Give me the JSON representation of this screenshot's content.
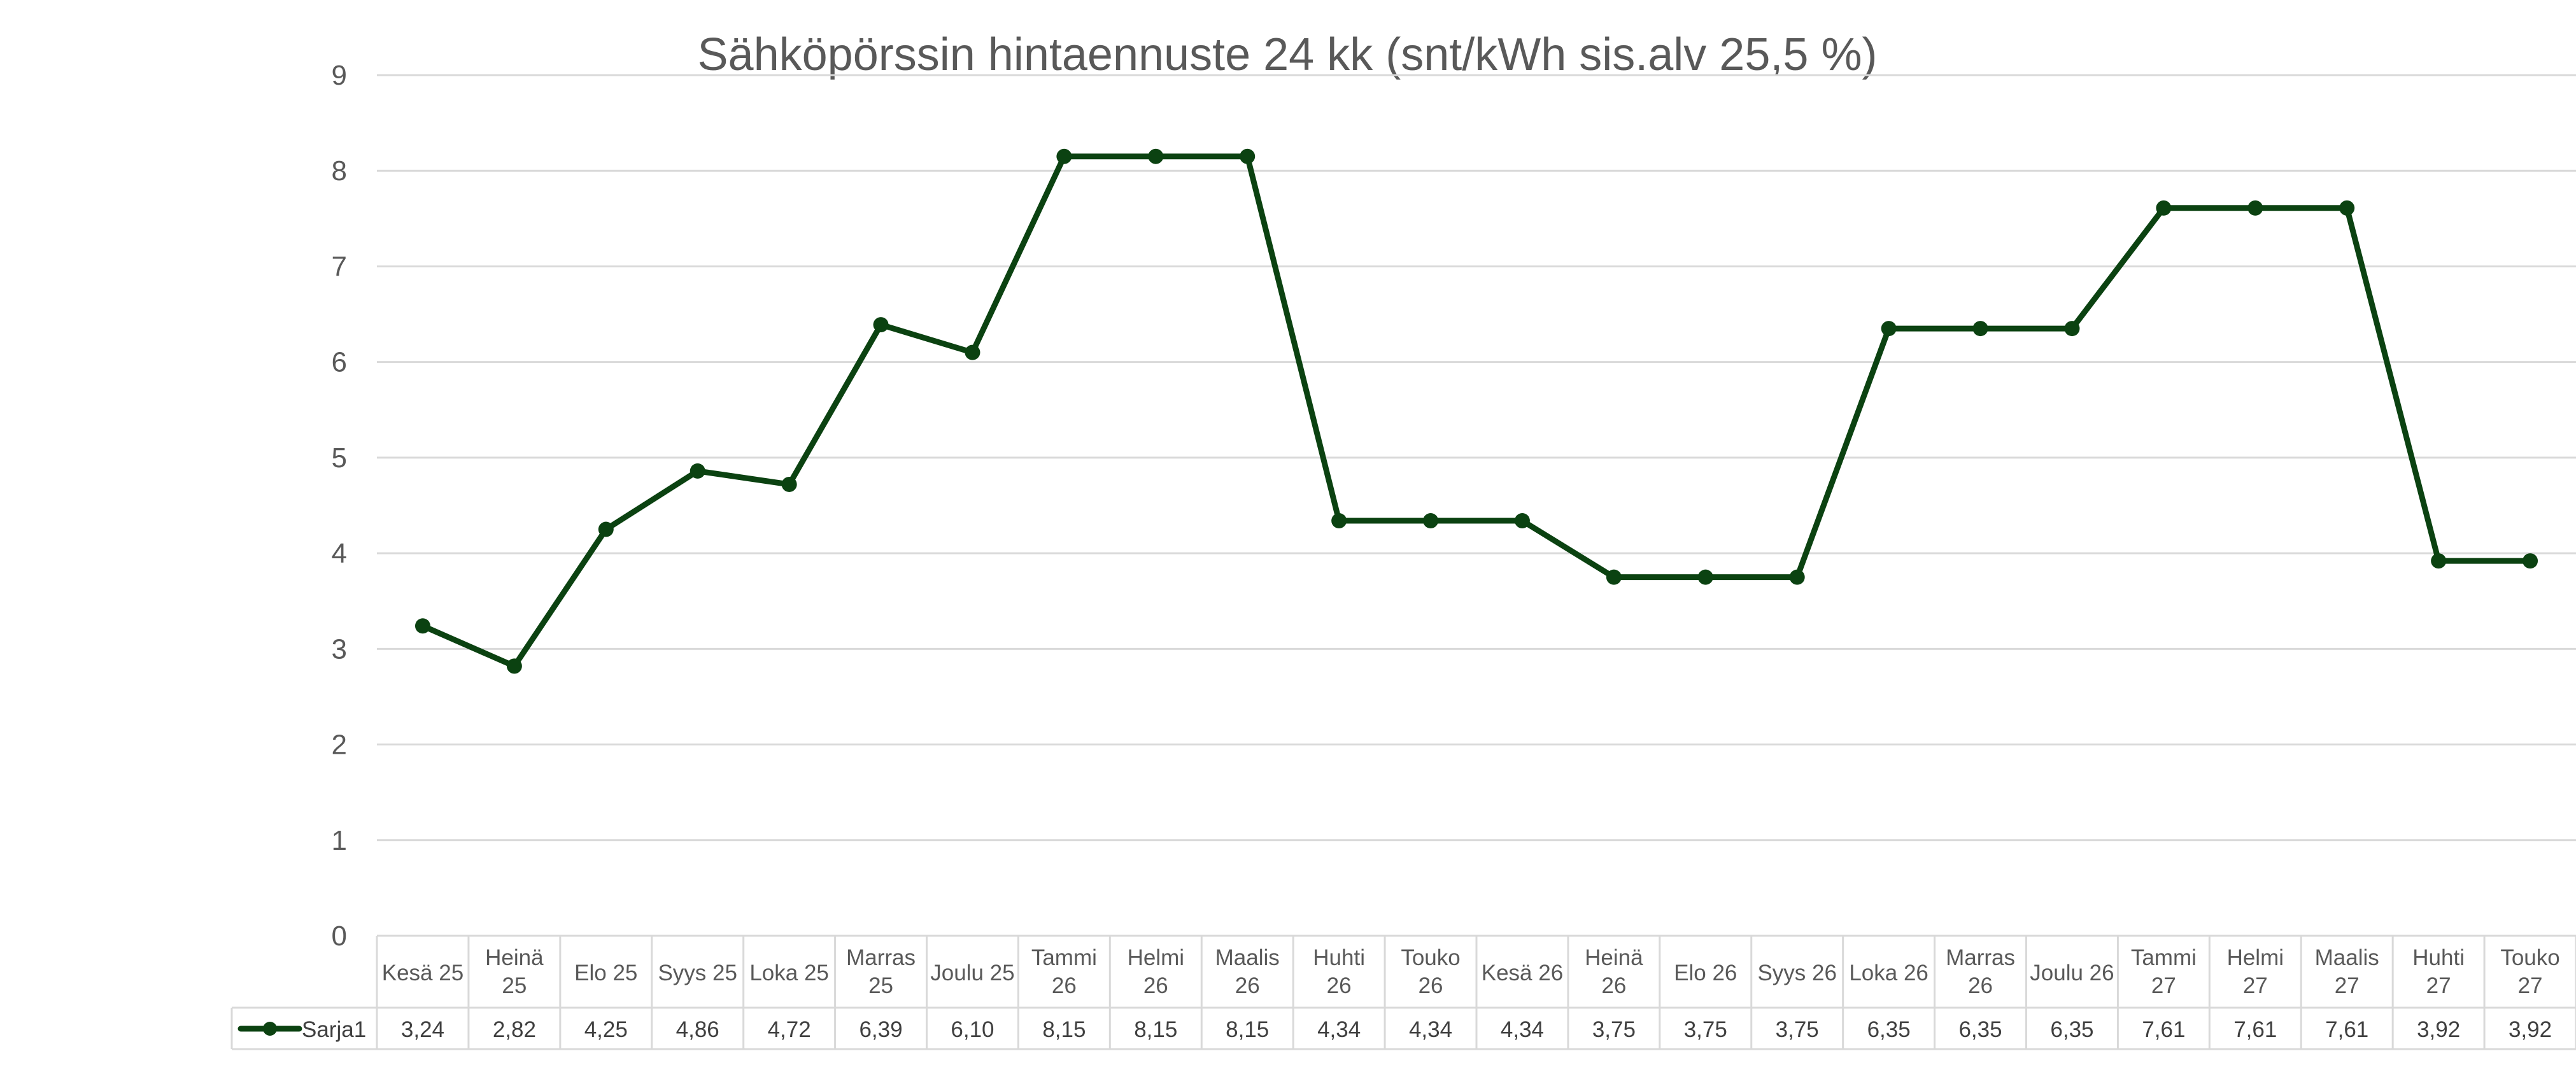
{
  "chart_data": {
    "type": "line",
    "title": "Sähköpörssin hintaennuste 24 kk (snt/kWh sis.alv 25,5 %)",
    "categories": [
      [
        "Kesä 25"
      ],
      [
        "Heinä",
        "25"
      ],
      [
        "Elo 25"
      ],
      [
        "Syys 25"
      ],
      [
        "Loka 25"
      ],
      [
        "Marras",
        "25"
      ],
      [
        "Joulu 25"
      ],
      [
        "Tammi",
        "26"
      ],
      [
        "Helmi",
        "26"
      ],
      [
        "Maalis",
        "26"
      ],
      [
        "Huhti",
        "26"
      ],
      [
        "Touko",
        "26"
      ],
      [
        "Kesä 26"
      ],
      [
        "Heinä",
        "26"
      ],
      [
        "Elo 26"
      ],
      [
        "Syys 26"
      ],
      [
        "Loka 26"
      ],
      [
        "Marras",
        "26"
      ],
      [
        "Joulu 26"
      ],
      [
        "Tammi",
        "27"
      ],
      [
        "Helmi",
        "27"
      ],
      [
        "Maalis",
        "27"
      ],
      [
        "Huhti",
        "27"
      ],
      [
        "Touko",
        "27"
      ]
    ],
    "series": [
      {
        "name": "Sarja1",
        "values": [
          3.24,
          2.82,
          4.25,
          4.86,
          4.72,
          6.39,
          6.1,
          8.15,
          8.15,
          8.15,
          4.34,
          4.34,
          4.34,
          3.75,
          3.75,
          3.75,
          6.35,
          6.35,
          6.35,
          7.61,
          7.61,
          7.61,
          3.92,
          3.92
        ],
        "value_labels": [
          "3,24",
          "2,82",
          "4,25",
          "4,86",
          "4,72",
          "6,39",
          "6,10",
          "8,15",
          "8,15",
          "8,15",
          "4,34",
          "4,34",
          "4,34",
          "3,75",
          "3,75",
          "3,75",
          "6,35",
          "6,35",
          "6,35",
          "7,61",
          "7,61",
          "7,61",
          "3,92",
          "3,92"
        ],
        "color": "#0b4211"
      }
    ],
    "ylim": [
      0,
      9
    ],
    "yticks": [
      "0",
      "1",
      "2",
      "3",
      "4",
      "5",
      "6",
      "7",
      "8",
      "9"
    ],
    "grid": true,
    "data_table": true,
    "legend_placement": "data-table-left"
  }
}
